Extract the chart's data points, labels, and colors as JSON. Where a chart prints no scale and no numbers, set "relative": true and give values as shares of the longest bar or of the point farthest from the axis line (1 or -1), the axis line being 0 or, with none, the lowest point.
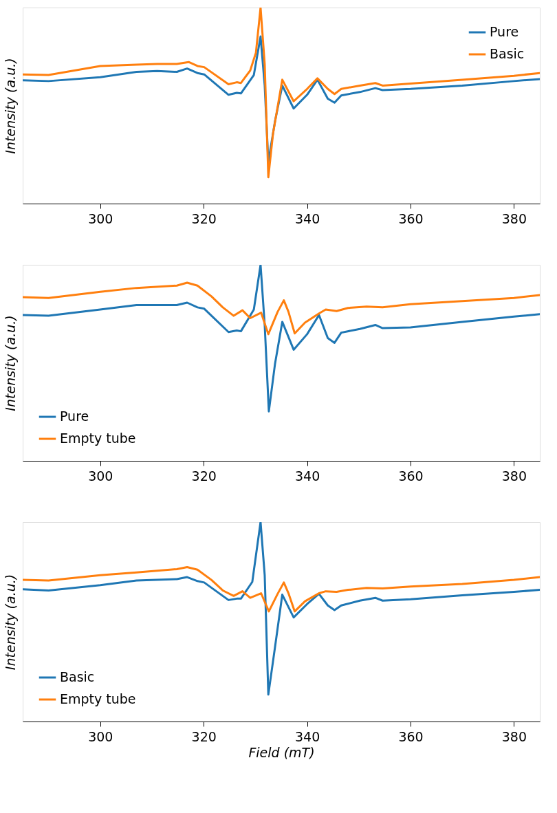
{
  "chart_data": [
    {
      "type": "line",
      "relative": true,
      "ylabel": "Intensity (a.u.)",
      "xlim": [
        285,
        385
      ],
      "xticks": [
        300,
        320,
        340,
        360,
        380
      ],
      "legend": "top right",
      "series": [
        {
          "name": "Pure",
          "color": "#1f77b4",
          "x": [
            285,
            290,
            300,
            307,
            311,
            314.8,
            316.8,
            318.8,
            320.1,
            324.8,
            326.4,
            327.2,
            329.7,
            331.0,
            331.8,
            332.5,
            333.8,
            335.2,
            337.4,
            340.0,
            342.0,
            344.0,
            345.3,
            346.6,
            350.2,
            353.2,
            354.6,
            360,
            370,
            380,
            385
          ],
          "values": [
            0.629,
            0.625,
            0.645,
            0.672,
            0.676,
            0.672,
            0.689,
            0.666,
            0.659,
            0.555,
            0.565,
            0.562,
            0.656,
            0.853,
            0.602,
            0.211,
            0.421,
            0.602,
            0.485,
            0.555,
            0.632,
            0.535,
            0.515,
            0.552,
            0.569,
            0.589,
            0.579,
            0.585,
            0.602,
            0.625,
            0.635
          ]
        },
        {
          "name": "Basic",
          "color": "#ff7f0e",
          "x": [
            285,
            290,
            300,
            307,
            311,
            314.8,
            317.1,
            318.8,
            320.1,
            324.8,
            326.4,
            327.2,
            329.0,
            330.1,
            331.0,
            331.8,
            332.5,
            333.4,
            335.2,
            337.4,
            340.0,
            342.0,
            344.0,
            345.3,
            346.6,
            350.2,
            353.2,
            354.6,
            360,
            370,
            380,
            385
          ],
          "values": [
            0.659,
            0.656,
            0.702,
            0.709,
            0.712,
            0.712,
            0.722,
            0.702,
            0.696,
            0.609,
            0.619,
            0.615,
            0.679,
            0.769,
            1.0,
            0.712,
            0.134,
            0.355,
            0.632,
            0.522,
            0.585,
            0.639,
            0.585,
            0.559,
            0.585,
            0.602,
            0.615,
            0.602,
            0.612,
            0.632,
            0.652,
            0.666
          ]
        }
      ]
    },
    {
      "type": "line",
      "relative": true,
      "ylabel": "Intensity (a.u.)",
      "xlim": [
        285,
        385
      ],
      "xticks": [
        300,
        320,
        340,
        360,
        380
      ],
      "legend": "bottom left",
      "series": [
        {
          "name": "Pure",
          "color": "#1f77b4",
          "x": [
            285,
            290,
            300,
            307,
            314.8,
            316.8,
            318.8,
            320.1,
            324.8,
            326.4,
            327.2,
            329.7,
            331.0,
            331.8,
            332.6,
            333.8,
            335.2,
            337.4,
            340.0,
            342.3,
            344.0,
            345.3,
            346.6,
            350.2,
            353.2,
            354.6,
            360,
            370,
            380,
            385
          ],
          "values": [
            0.744,
            0.74,
            0.772,
            0.795,
            0.795,
            0.807,
            0.783,
            0.776,
            0.657,
            0.665,
            0.661,
            0.772,
            1.0,
            0.693,
            0.252,
            0.496,
            0.709,
            0.567,
            0.646,
            0.744,
            0.626,
            0.602,
            0.654,
            0.673,
            0.693,
            0.677,
            0.681,
            0.709,
            0.736,
            0.748
          ]
        },
        {
          "name": "Empty tube",
          "color": "#ff7f0e",
          "x": [
            285,
            290,
            300,
            307,
            314.8,
            316.8,
            318.8,
            321.5,
            323.7,
            325.8,
            327.5,
            329.0,
            331.1,
            332.5,
            334.3,
            335.5,
            336.4,
            337.6,
            339.6,
            342.3,
            343.6,
            345.7,
            347.9,
            351.5,
            354.6,
            360,
            370,
            380,
            385
          ],
          "values": [
            0.835,
            0.831,
            0.862,
            0.882,
            0.894,
            0.909,
            0.894,
            0.839,
            0.783,
            0.74,
            0.768,
            0.728,
            0.756,
            0.646,
            0.76,
            0.819,
            0.76,
            0.65,
            0.705,
            0.752,
            0.772,
            0.764,
            0.78,
            0.787,
            0.783,
            0.799,
            0.815,
            0.831,
            0.846
          ]
        }
      ]
    },
    {
      "type": "line",
      "relative": true,
      "ylabel": "Intensity (a.u.)",
      "xlabel": "Field (mT)",
      "xlim": [
        285,
        385
      ],
      "xticks": [
        300,
        320,
        340,
        360,
        380
      ],
      "legend": "bottom left",
      "series": [
        {
          "name": "Basic",
          "color": "#1f77b4",
          "x": [
            285,
            290,
            300,
            307,
            314.8,
            316.8,
            318.8,
            320.1,
            324.8,
            326.4,
            327.2,
            329.4,
            331.0,
            331.8,
            332.5,
            333.8,
            335.2,
            337.4,
            340.0,
            342.3,
            344.0,
            345.3,
            346.6,
            350.2,
            353.2,
            354.6,
            360,
            370,
            380,
            385
          ],
          "values": [
            0.663,
            0.657,
            0.684,
            0.707,
            0.714,
            0.724,
            0.704,
            0.697,
            0.609,
            0.616,
            0.616,
            0.7,
            1.0,
            0.734,
            0.135,
            0.374,
            0.636,
            0.522,
            0.589,
            0.64,
            0.582,
            0.559,
            0.582,
            0.606,
            0.62,
            0.606,
            0.613,
            0.633,
            0.65,
            0.66
          ]
        },
        {
          "name": "Empty tube",
          "color": "#ff7f0e",
          "x": [
            285,
            290,
            300,
            307,
            314.8,
            316.8,
            318.8,
            321.5,
            323.7,
            325.8,
            327.5,
            329.0,
            331.1,
            332.6,
            334.3,
            335.5,
            336.4,
            337.6,
            339.6,
            342.3,
            343.6,
            345.7,
            347.9,
            351.5,
            354.6,
            360,
            370,
            380,
            385
          ],
          "values": [
            0.71,
            0.707,
            0.734,
            0.747,
            0.764,
            0.774,
            0.761,
            0.71,
            0.657,
            0.63,
            0.653,
            0.62,
            0.643,
            0.552,
            0.64,
            0.697,
            0.643,
            0.552,
            0.603,
            0.643,
            0.653,
            0.65,
            0.66,
            0.67,
            0.667,
            0.677,
            0.69,
            0.71,
            0.724
          ]
        }
      ]
    }
  ]
}
